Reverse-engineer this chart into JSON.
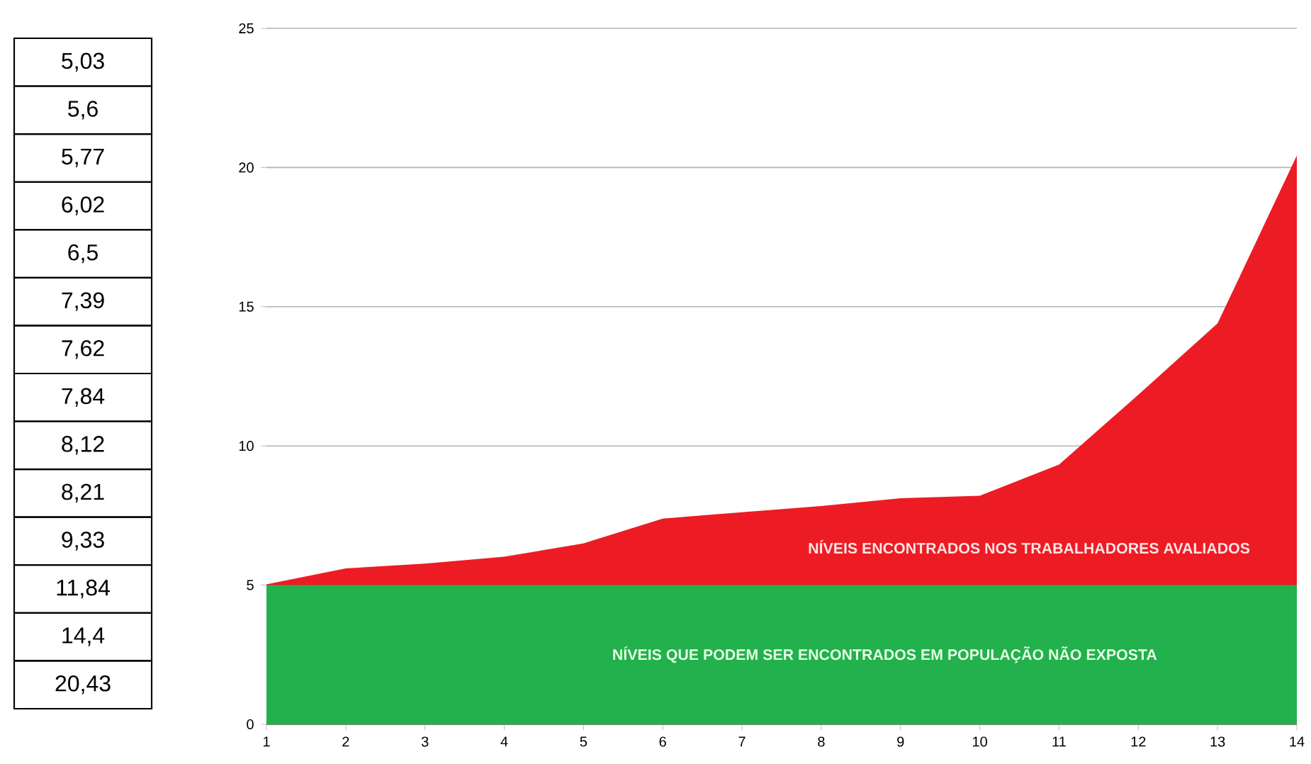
{
  "chart_data": {
    "type": "area",
    "x": [
      1,
      2,
      3,
      4,
      5,
      6,
      7,
      8,
      9,
      10,
      11,
      12,
      13,
      14
    ],
    "xlim": [
      1,
      14
    ],
    "xticks": [
      1,
      2,
      3,
      4,
      5,
      6,
      7,
      8,
      9,
      10,
      11,
      12,
      13,
      14
    ],
    "ylim": [
      0,
      25
    ],
    "yticks": [
      0,
      5,
      10,
      15,
      20,
      25
    ],
    "grid": "y",
    "series": [
      {
        "name": "NÍVEIS ENCONTRADOS NOS TRABALHADORES AVALIADOS",
        "color": "#ed1c24",
        "values": [
          5.03,
          5.6,
          5.77,
          6.02,
          6.5,
          7.39,
          7.62,
          7.84,
          8.12,
          8.21,
          9.33,
          11.84,
          14.4,
          20.43
        ]
      }
    ],
    "annotations": [
      "5,03",
      "5,6",
      "5,77",
      "6,02",
      "6,5",
      "7,39",
      "7,62",
      "7,84",
      "8,12",
      "8,21",
      "9,33",
      "11,84",
      "14,4",
      "20,43"
    ],
    "bands": [
      {
        "axis": "y",
        "from": 0,
        "to": 5,
        "label": "NÍVEIS QUE PODEM SER ENCONTRADOS EM POPULAÇÃO NÃO EXPOSTA",
        "color": "#22b14c"
      }
    ]
  }
}
